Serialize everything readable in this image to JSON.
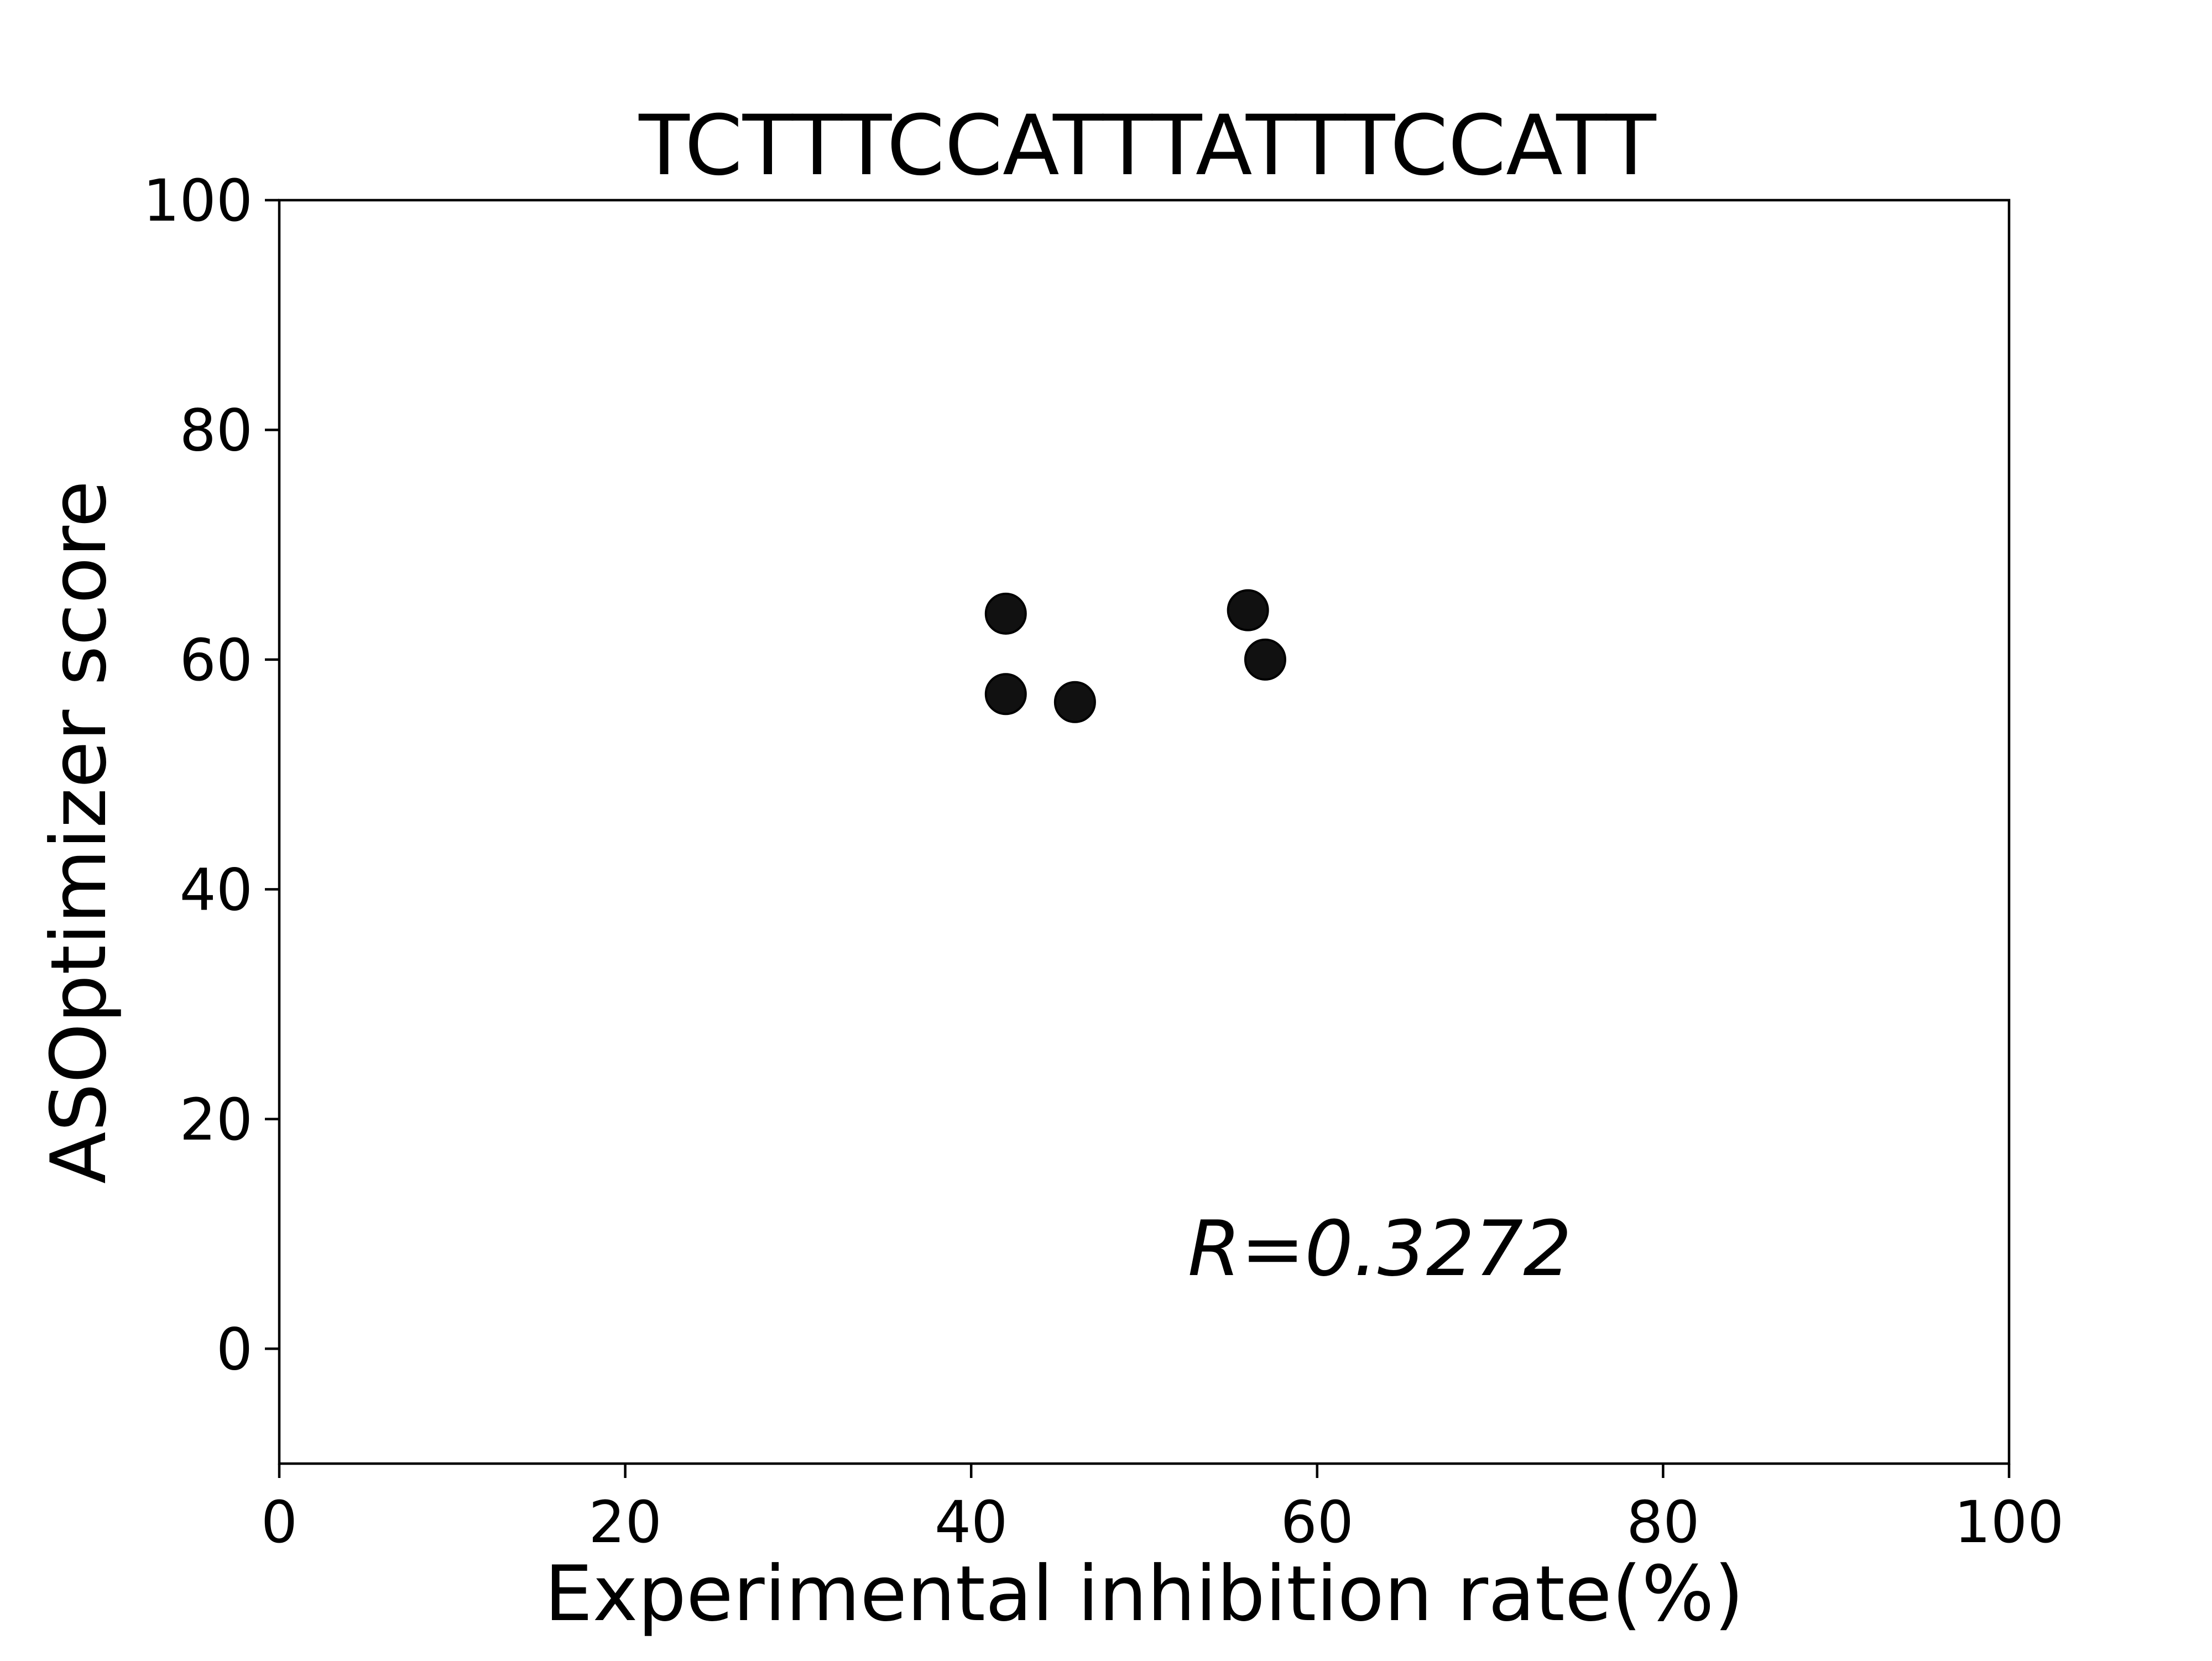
{
  "chart_data": {
    "type": "scatter",
    "title": "TCTTTCCATTTATTTCCATT",
    "xlabel": "Experimental inhibition rate(%)",
    "ylabel": "ASOptimizer score",
    "xlim": [
      0,
      100
    ],
    "ylim": [
      -10,
      100
    ],
    "xticks": [
      0,
      20,
      40,
      60,
      80,
      100
    ],
    "yticks": [
      0,
      20,
      40,
      60,
      80,
      100
    ],
    "grid": false,
    "annotation": "R=0.3272",
    "point_color": "#111111",
    "points": [
      {
        "x": 42,
        "y": 64
      },
      {
        "x": 42,
        "y": 57
      },
      {
        "x": 46,
        "y": 56.3
      },
      {
        "x": 56,
        "y": 64.3
      },
      {
        "x": 57,
        "y": 60
      }
    ]
  }
}
